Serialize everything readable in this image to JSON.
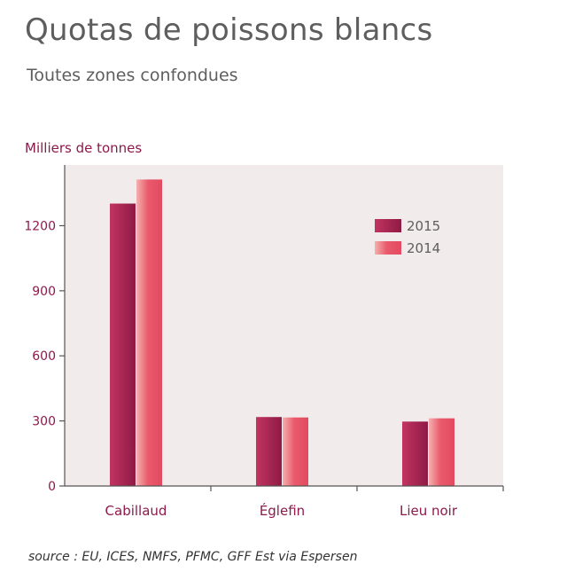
{
  "header": {
    "title": "Quotas de poissons blancs",
    "subtitle": "Toutes zones confondues"
  },
  "footer": {
    "source": "source : EU, ICES, NMFS, PFMC, GFF Est via Espersen"
  },
  "colors": {
    "background": "#f2ebeb",
    "axis": "#555555",
    "text_accent": "#8c1a4b",
    "series_2015": "#b52a58",
    "series_2014": "#e8556a"
  },
  "chart_data": {
    "type": "bar",
    "ylabel": "Milliers de tonnes",
    "xlabel": "",
    "categories": [
      "Cabillaud",
      "Églefin",
      "Lieu noir"
    ],
    "series": [
      {
        "name": "2015",
        "values": [
          1302,
          318,
          297
        ]
      },
      {
        "name": "2014",
        "values": [
          1413,
          316,
          312
        ]
      }
    ],
    "yticks": [
      0,
      300,
      600,
      900,
      1200
    ],
    "ylim": [
      0,
      1480
    ],
    "grid": false,
    "legend": "top-right"
  }
}
